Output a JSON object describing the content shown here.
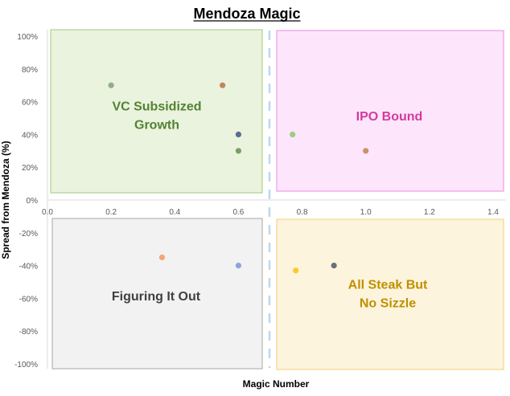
{
  "chart_data": {
    "type": "scatter",
    "title": "Mendoza Magic",
    "xlabel": "Magic Number",
    "ylabel": "Spread from Mendoza (%)",
    "xlim": [
      0,
      1.4
    ],
    "ylim": [
      -100,
      100
    ],
    "x_ticks": [
      "0.0",
      "0.2",
      "0.4",
      "0.6",
      "0.8",
      "1.0",
      "1.2",
      "1.4"
    ],
    "y_ticks": [
      "100%",
      "80%",
      "60%",
      "40%",
      "20%",
      "0%",
      "-20%",
      "-40%",
      "-60%",
      "-80%",
      "-100%"
    ],
    "quadrants": [
      {
        "lines": [
          "VC Subsidized",
          "Growth"
        ],
        "fill": "#eaf3dd",
        "border": "#9ccb7e",
        "text_color": "#548235"
      },
      {
        "lines": [
          "IPO Bound"
        ],
        "fill": "#fde6fb",
        "border": "#e88ce0",
        "text_color": "#d43a9f"
      },
      {
        "lines": [
          "Figuring It Out"
        ],
        "fill": "#f2f2f2",
        "border": "#a6a6a6",
        "text_color": "#404040"
      },
      {
        "lines": [
          "All Steak But",
          "No Sizzle"
        ],
        "fill": "#fdf4dd",
        "border": "#f2cf72",
        "text_color": "#bf9000"
      }
    ],
    "points": [
      {
        "x": 0.2,
        "y": 70,
        "color": "#8fae8a"
      },
      {
        "x": 0.55,
        "y": 70,
        "color": "#c0855d"
      },
      {
        "x": 0.6,
        "y": 40,
        "color": "#5a6e92"
      },
      {
        "x": 0.6,
        "y": 30,
        "color": "#7aa061"
      },
      {
        "x": 0.77,
        "y": 40,
        "color": "#9fcc7f"
      },
      {
        "x": 1.0,
        "y": 30,
        "color": "#c99268"
      },
      {
        "x": 0.36,
        "y": -35,
        "color": "#f4a674"
      },
      {
        "x": 0.6,
        "y": -40,
        "color": "#8aa8d6"
      },
      {
        "x": 0.78,
        "y": -43,
        "color": "#f8ca33"
      },
      {
        "x": 0.9,
        "y": -40,
        "color": "#66717c"
      }
    ],
    "divider_color": "#bdd7ee"
  }
}
